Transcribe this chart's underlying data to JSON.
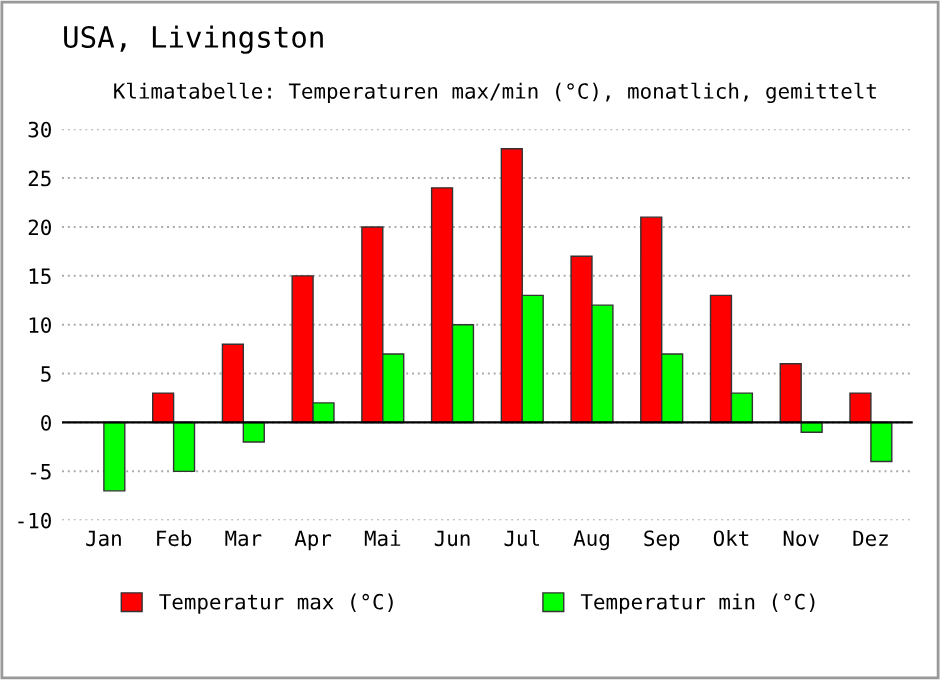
{
  "chart_data": {
    "type": "bar",
    "title": "USA, Livingston",
    "subtitle": "Klimatabelle: Temperaturen max/min (°C), monatlich, gemittelt",
    "categories": [
      "Jan",
      "Feb",
      "Mar",
      "Apr",
      "Mai",
      "Jun",
      "Jul",
      "Aug",
      "Sep",
      "Okt",
      "Nov",
      "Dez"
    ],
    "series": [
      {
        "name": "Temperatur max (°C)",
        "color": "#ff0000",
        "values": [
          0,
          3,
          8,
          15,
          20,
          24,
          28,
          17,
          21,
          13,
          6,
          3
        ]
      },
      {
        "name": "Temperatur min (°C)",
        "color": "#00ff00",
        "values": [
          -7,
          -5,
          -2,
          2,
          7,
          10,
          13,
          12,
          7,
          3,
          -1,
          -4
        ]
      }
    ],
    "ylim": [
      -10,
      30
    ],
    "yticks": [
      -10,
      -5,
      0,
      5,
      10,
      15,
      20,
      25,
      30
    ],
    "grid": "y",
    "legend": "bottom"
  }
}
